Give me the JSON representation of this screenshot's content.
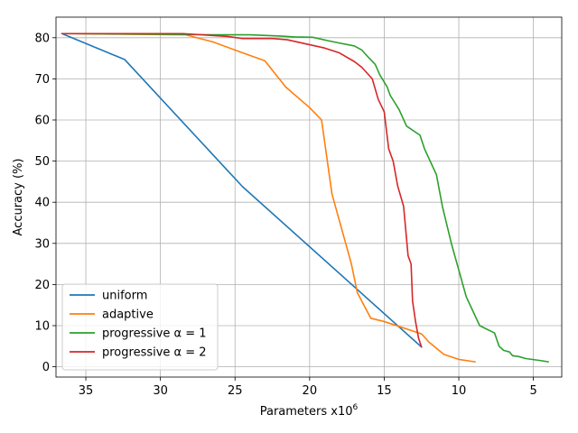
{
  "chart_data": {
    "type": "line",
    "xlabel": "Parameters x10",
    "xlabel_sup": "6",
    "ylabel": "Accuracy (%)",
    "xlim": [
      37,
      3.1
    ],
    "ylim": [
      -2.5,
      85
    ],
    "x_inverted": true,
    "grid": true,
    "legend_position": "lower-left",
    "xticks": [
      35,
      30,
      25,
      20,
      15,
      10,
      5
    ],
    "yticks": [
      0,
      10,
      20,
      30,
      40,
      50,
      60,
      70,
      80
    ],
    "series": [
      {
        "name": "uniform",
        "color": "#1f77b4",
        "points": [
          [
            36.6,
            81
          ],
          [
            32.4,
            74.7
          ],
          [
            24.5,
            43.8
          ],
          [
            12.5,
            4.8
          ]
        ]
      },
      {
        "name": "adaptive",
        "color": "#ff7f0e",
        "points": [
          [
            36.6,
            81
          ],
          [
            28.3,
            80.7
          ],
          [
            26.5,
            79
          ],
          [
            25.0,
            77
          ],
          [
            23.0,
            74.4
          ],
          [
            21.6,
            68
          ],
          [
            20.0,
            63
          ],
          [
            19.2,
            60
          ],
          [
            18.5,
            42
          ],
          [
            17.2,
            25
          ],
          [
            16.8,
            18
          ],
          [
            15.9,
            11.8
          ],
          [
            15.0,
            11
          ],
          [
            12.5,
            8
          ],
          [
            12.0,
            6
          ],
          [
            11.0,
            3
          ],
          [
            10.0,
            1.8
          ],
          [
            8.9,
            1.2
          ]
        ]
      },
      {
        "name": "progressive α = 1",
        "color": "#2ca02c",
        "points": [
          [
            36.6,
            81
          ],
          [
            28.5,
            80.8
          ],
          [
            26.5,
            80.7
          ],
          [
            24.0,
            80.7
          ],
          [
            22.0,
            80.4
          ],
          [
            21.0,
            80.2
          ],
          [
            19.8,
            80.1
          ],
          [
            18.8,
            79.3
          ],
          [
            18.0,
            78.7
          ],
          [
            17.0,
            78
          ],
          [
            16.5,
            77
          ],
          [
            16.0,
            75
          ],
          [
            15.6,
            73.5
          ],
          [
            15.3,
            71
          ],
          [
            14.8,
            68
          ],
          [
            14.6,
            66
          ],
          [
            14.0,
            62.5
          ],
          [
            13.5,
            58.5
          ],
          [
            12.6,
            56.3
          ],
          [
            12.3,
            53
          ],
          [
            11.5,
            46.7
          ],
          [
            11.1,
            39
          ],
          [
            10.5,
            30
          ],
          [
            9.5,
            17
          ],
          [
            8.6,
            10
          ],
          [
            7.6,
            8.2
          ],
          [
            7.3,
            5
          ],
          [
            7.0,
            4
          ],
          [
            6.6,
            3.6
          ],
          [
            6.4,
            2.7
          ],
          [
            6.0,
            2.5
          ],
          [
            5.5,
            2
          ],
          [
            4.5,
            1.5
          ],
          [
            4.0,
            1.2
          ]
        ]
      },
      {
        "name": "progressive α = 2",
        "color": "#d62728",
        "points": [
          [
            36.6,
            81
          ],
          [
            30.0,
            81
          ],
          [
            28.5,
            81
          ],
          [
            25.5,
            80.3
          ],
          [
            24.5,
            79.8
          ],
          [
            22.5,
            79.8
          ],
          [
            21.5,
            79.5
          ],
          [
            20.0,
            78.3
          ],
          [
            19.0,
            77.5
          ],
          [
            18.0,
            76.3
          ],
          [
            17.0,
            74.2
          ],
          [
            16.5,
            72.8
          ],
          [
            15.8,
            70
          ],
          [
            15.4,
            65
          ],
          [
            15.0,
            62
          ],
          [
            14.7,
            53
          ],
          [
            14.4,
            50
          ],
          [
            14.1,
            44
          ],
          [
            13.7,
            39
          ],
          [
            13.4,
            27
          ],
          [
            13.2,
            25
          ],
          [
            13.1,
            16
          ],
          [
            12.9,
            11
          ],
          [
            12.7,
            7
          ],
          [
            12.5,
            4.8
          ]
        ]
      }
    ]
  }
}
